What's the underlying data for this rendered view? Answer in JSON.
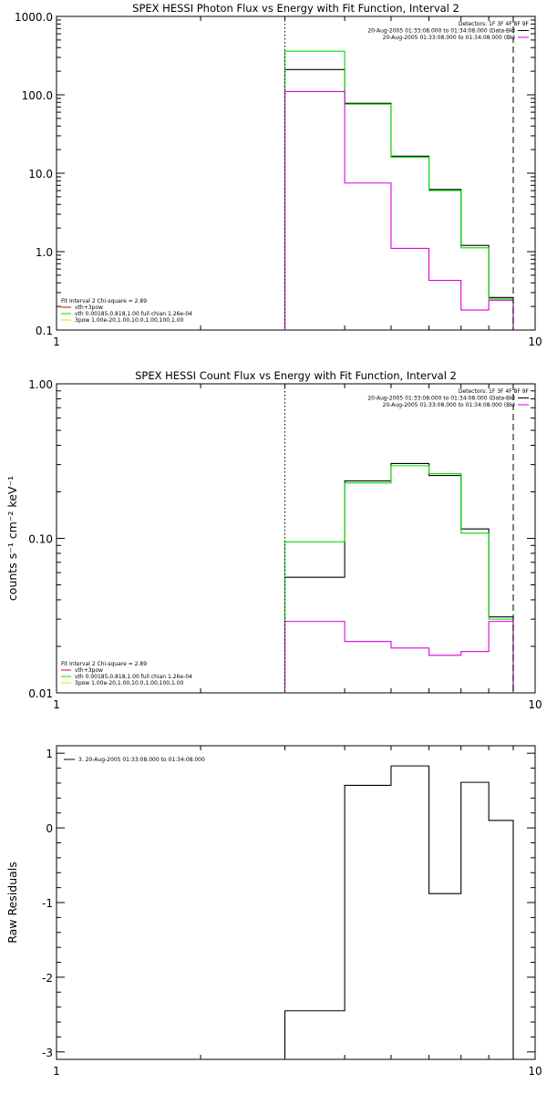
{
  "chart_data": [
    {
      "type": "line",
      "title": "SPEX HESSI Photon Flux vs Energy with Fit Function, Interval 2",
      "xlabel": "",
      "ylabel": "",
      "xscale": "log",
      "yscale": "log",
      "xlim": [
        1,
        10
      ],
      "ylim": [
        0.1,
        1000
      ],
      "x_ticks": [
        "1",
        "10"
      ],
      "y_ticks": [
        "0.1",
        "1.0",
        "10.0",
        "100.0",
        "1000.0"
      ],
      "bin_edges": [
        3,
        4,
        5,
        6,
        7,
        8,
        9
      ],
      "series": [
        {
          "name": "",
          "color": "#000000",
          "values": [
            210,
            78,
            16.5,
            6.2,
            1.2,
            0.26
          ]
        },
        {
          "name": "",
          "color": "#00dd00",
          "values": [
            360,
            76,
            16.0,
            6.0,
            1.12,
            0.25
          ]
        },
        {
          "name": "",
          "color": "#dd00dd",
          "values": [
            110,
            7.5,
            1.1,
            0.43,
            0.18,
            0.24
          ]
        }
      ],
      "vlines": [
        {
          "x": 3.0,
          "style": "dotted"
        },
        {
          "x": 9.0,
          "style": "dashed"
        }
      ],
      "legend_top": {
        "position": "top-right",
        "header": "Detectors: 1F 3F 4F 8F 9F",
        "entries": [
          {
            "label": "20-Aug-2005 01:33:08.000 to 01:34:08.000 (Data-Bk)",
            "color": "#000000"
          },
          {
            "label": "20-Aug-2005 01:33:08.000 to 01:34:08.000 (Bk)",
            "color": "#dd00dd"
          }
        ]
      },
      "legend_bottom": {
        "position": "bottom-left",
        "header": "Fit Interval 2   Chi-square = 2.89",
        "entries": [
          {
            "label": "vth+3pow",
            "color": "#dd0000"
          },
          {
            "label": "vth 0.00185,0.818,1.00  full chian 1.26e-04",
            "color": "#00dd00"
          },
          {
            "label": "3pow 1.00e-20,1.00,10.0,1.00,100,1.00",
            "color": "#dddd00"
          }
        ]
      }
    },
    {
      "type": "line",
      "title": "SPEX HESSI Count Flux vs Energy with Fit Function, Interval 2",
      "xlabel": "",
      "ylabel": "counts s⁻¹ cm⁻² keV⁻¹",
      "xscale": "log",
      "yscale": "log",
      "xlim": [
        1,
        10
      ],
      "ylim": [
        0.01,
        1
      ],
      "x_ticks": [
        "1",
        "10"
      ],
      "y_ticks": [
        "0.01",
        "0.10",
        "1.00"
      ],
      "bin_edges": [
        3,
        4,
        5,
        6,
        7,
        8,
        9
      ],
      "series": [
        {
          "name": "",
          "color": "#000000",
          "values": [
            0.056,
            0.235,
            0.305,
            0.255,
            0.115,
            0.031
          ]
        },
        {
          "name": "",
          "color": "#00dd00",
          "values": [
            0.095,
            0.228,
            0.295,
            0.262,
            0.108,
            0.03
          ]
        },
        {
          "name": "",
          "color": "#dd00dd",
          "values": [
            0.029,
            0.0215,
            0.0195,
            0.0175,
            0.0185,
            0.029
          ]
        }
      ],
      "vlines": [
        {
          "x": 3.0,
          "style": "dotted"
        },
        {
          "x": 9.0,
          "style": "dashed"
        }
      ],
      "legend_top": {
        "position": "top-right",
        "header": "Detectors: 1F 3F 4F 8F 9F",
        "entries": [
          {
            "label": "20-Aug-2005 01:33:08.000 to 01:34:08.000 (Data-Bk)",
            "color": "#000000"
          },
          {
            "label": "20-Aug-2005 01:33:08.000 to 01:34:08.000 (Bk)",
            "color": "#dd00dd"
          }
        ]
      },
      "legend_bottom": {
        "position": "bottom-left",
        "header": "Fit Interval 2   Chi-square = 2.89",
        "entries": [
          {
            "label": "vth+3pow",
            "color": "#dd0000"
          },
          {
            "label": "vth 0.00185,0.818,1.00  full chian 1.26e-04",
            "color": "#00dd00"
          },
          {
            "label": "3pow 1.00e-20,1.00,10.0,1.00,100,1.00",
            "color": "#dddd00"
          }
        ]
      }
    },
    {
      "type": "line",
      "title": "",
      "xlabel": "",
      "ylabel": "Raw Residuals",
      "xscale": "log",
      "yscale": "linear",
      "xlim": [
        1,
        10
      ],
      "ylim": [
        -3.1,
        1.1
      ],
      "x_ticks": [
        "1",
        "10"
      ],
      "y_ticks": [
        "-3",
        "-2",
        "-1",
        "0",
        "1"
      ],
      "bin_edges": [
        3,
        4,
        5,
        6,
        7,
        8,
        9
      ],
      "series": [
        {
          "name": "",
          "color": "#000000",
          "values": [
            -2.45,
            0.57,
            0.83,
            -0.88,
            0.61,
            0.1
          ]
        }
      ],
      "legend_top": {
        "position": "top-left",
        "header": "",
        "entries": [
          {
            "label": "3. 20-Aug-2005 01:33:08.000 to 01:34:08.000",
            "color": "#000000"
          }
        ]
      }
    }
  ]
}
